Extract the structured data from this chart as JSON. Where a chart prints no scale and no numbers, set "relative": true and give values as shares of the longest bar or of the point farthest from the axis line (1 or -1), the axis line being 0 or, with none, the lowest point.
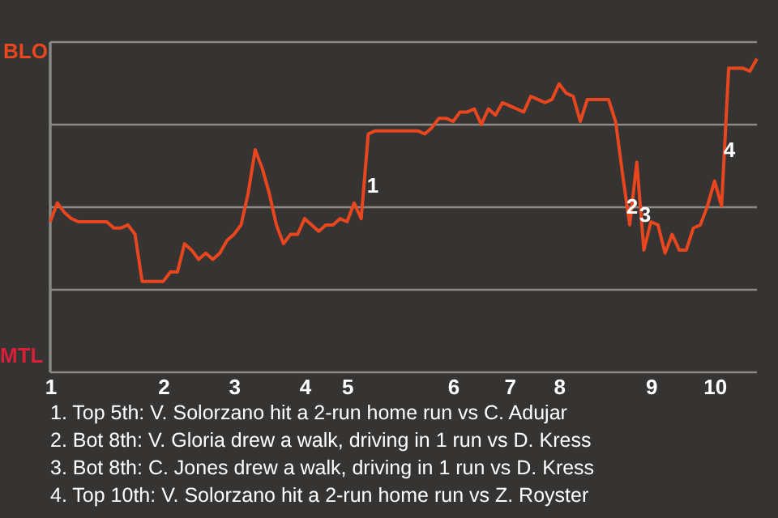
{
  "chart_data": {
    "type": "line",
    "relative": true,
    "categories": [
      "1",
      null,
      null,
      null,
      null,
      null,
      null,
      null,
      null,
      null,
      null,
      null,
      null,
      null,
      null,
      null,
      "2",
      null,
      null,
      null,
      null,
      null,
      null,
      null,
      null,
      null,
      "3",
      null,
      null,
      null,
      null,
      null,
      null,
      null,
      null,
      null,
      "4",
      null,
      null,
      null,
      null,
      null,
      "5",
      null,
      null,
      null,
      null,
      null,
      null,
      null,
      null,
      null,
      null,
      null,
      null,
      null,
      null,
      "6",
      null,
      null,
      null,
      null,
      null,
      null,
      null,
      "7",
      null,
      null,
      null,
      null,
      null,
      null,
      "8",
      null,
      null,
      null,
      null,
      null,
      null,
      null,
      null,
      null,
      null,
      null,
      null,
      "9",
      null,
      null,
      null,
      null,
      null,
      null,
      null,
      null,
      "10",
      null,
      null,
      null,
      null,
      null,
      null
    ],
    "series": [
      {
        "color": "#e8461e",
        "values": [
          0.48,
          0.54,
          0.51,
          0.49,
          0.48,
          0.48,
          0.48,
          0.48,
          0.48,
          0.46,
          0.46,
          0.47,
          0.44,
          0.29,
          0.29,
          0.29,
          0.29,
          0.32,
          0.32,
          0.41,
          0.39,
          0.36,
          0.38,
          0.36,
          0.38,
          0.42,
          0.44,
          0.47,
          0.57,
          0.71,
          0.65,
          0.57,
          0.47,
          0.41,
          0.44,
          0.44,
          0.49,
          0.47,
          0.45,
          0.47,
          0.47,
          0.49,
          0.48,
          0.54,
          0.49,
          0.76,
          0.77,
          0.77,
          0.77,
          0.77,
          0.77,
          0.77,
          0.77,
          0.76,
          0.78,
          0.81,
          0.81,
          0.8,
          0.83,
          0.83,
          0.84,
          0.79,
          0.84,
          0.82,
          0.86,
          0.85,
          0.84,
          0.83,
          0.88,
          0.87,
          0.86,
          0.87,
          0.92,
          0.89,
          0.88,
          0.8,
          0.87,
          0.87,
          0.87,
          0.87,
          0.8,
          0.63,
          0.47,
          0.67,
          0.39,
          0.48,
          0.47,
          0.38,
          0.44,
          0.39,
          0.39,
          0.46,
          0.47,
          0.53,
          0.61,
          0.53,
          0.97,
          0.97,
          0.97,
          0.96,
          1
        ]
      }
    ],
    "grid": "y",
    "marker": "none",
    "line_style": "solid",
    "annotations": [
      "BLO",
      "MTL",
      "1",
      "2",
      "3",
      "4",
      "1. Top 5th: V. Solorzano hit a 2-run home run vs C. Adujar",
      "2. Bot 8th: V. Gloria drew a walk, driving in 1 run vs D. Kress",
      "3. Bot 8th: C. Jones drew a walk, driving in 1 run vs D. Kress",
      "4. Top 10th: V. Solorzano hit a 2-run home run vs Z. Royster"
    ]
  }
}
